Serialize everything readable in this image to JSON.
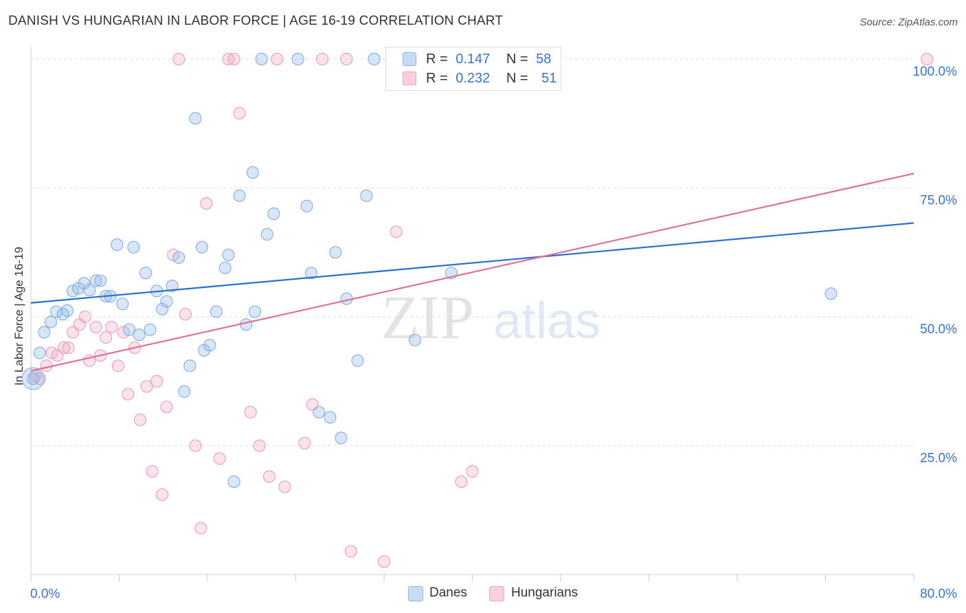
{
  "title": "DANISH VS HUNGARIAN IN LABOR FORCE | AGE 16-19 CORRELATION CHART",
  "source": "Source: ZipAtlas.com",
  "watermark": {
    "zip": "ZIP",
    "atlas": "atlas"
  },
  "legend": {
    "r_label": "R =",
    "n_label": "N =",
    "danes": {
      "r": "0.147",
      "n": "58"
    },
    "hungarians": {
      "r": "0.232",
      "n": "51"
    }
  },
  "chart_data": {
    "type": "scatter",
    "title": "DANISH VS HUNGARIAN IN LABOR FORCE | AGE 16-19 CORRELATION CHART",
    "xlabel": "",
    "ylabel": "In Labor Force | Age 16-19",
    "xlim": [
      0,
      80
    ],
    "ylim": [
      0,
      102
    ],
    "x_tick_labels": [
      "0.0%",
      "80.0%"
    ],
    "y_tick_values": [
      25,
      50,
      75,
      100
    ],
    "y_tick_labels": [
      "25.0%",
      "50.0%",
      "75.0%",
      "100.0%"
    ],
    "grid": true,
    "legend_position": "top-center",
    "colors": {
      "danes": "#8fb8e8",
      "danes_line": "#2a6fd0",
      "hungarians": "#f2a3bd",
      "hungarians_line": "#e0709a",
      "tick_text": "#3a73c8"
    },
    "series": [
      {
        "name": "Danes",
        "r": 0.147,
        "n": 58,
        "trend": [
          [
            0,
            52.7
          ],
          [
            80,
            68.2
          ]
        ],
        "points": [
          [
            0.2,
            38
          ],
          [
            0.8,
            43
          ],
          [
            1.2,
            47
          ],
          [
            1.8,
            49
          ],
          [
            2.3,
            51
          ],
          [
            2.9,
            50.5
          ],
          [
            3.3,
            51.2
          ],
          [
            3.8,
            55
          ],
          [
            4.3,
            55.5
          ],
          [
            4.8,
            56.5
          ],
          [
            5.3,
            55.2
          ],
          [
            5.9,
            57
          ],
          [
            6.3,
            57
          ],
          [
            6.8,
            54
          ],
          [
            7.2,
            54
          ],
          [
            7.8,
            64
          ],
          [
            8.3,
            52.5
          ],
          [
            8.9,
            47.5
          ],
          [
            9.3,
            63.5
          ],
          [
            9.8,
            46.5
          ],
          [
            10.4,
            58.5
          ],
          [
            10.8,
            47.5
          ],
          [
            11.4,
            55
          ],
          [
            11.9,
            51.5
          ],
          [
            12.3,
            53
          ],
          [
            12.8,
            56
          ],
          [
            13.4,
            61.5
          ],
          [
            13.9,
            35.5
          ],
          [
            14.4,
            40.5
          ],
          [
            14.9,
            88.5
          ],
          [
            15.5,
            63.5
          ],
          [
            15.7,
            43.5
          ],
          [
            16.2,
            44.5
          ],
          [
            16.8,
            51
          ],
          [
            17.6,
            59.5
          ],
          [
            17.9,
            62
          ],
          [
            18.4,
            18
          ],
          [
            18.9,
            73.5
          ],
          [
            19.5,
            48.5
          ],
          [
            20.1,
            78
          ],
          [
            20.3,
            51
          ],
          [
            20.9,
            100
          ],
          [
            21.4,
            66
          ],
          [
            22.0,
            70
          ],
          [
            24.2,
            100
          ],
          [
            25.0,
            71.5
          ],
          [
            25.4,
            58.5
          ],
          [
            26.1,
            31.5
          ],
          [
            27.1,
            30.5
          ],
          [
            27.6,
            62.5
          ],
          [
            28.1,
            26.5
          ],
          [
            28.6,
            53.5
          ],
          [
            29.6,
            41.5
          ],
          [
            30.4,
            73.5
          ],
          [
            31.1,
            100
          ],
          [
            34.8,
            45.5
          ],
          [
            38.1,
            58.5
          ],
          [
            72.5,
            54.5
          ]
        ]
      },
      {
        "name": "Hungarians",
        "r": 0.232,
        "n": 51,
        "trend": [
          [
            0,
            39.5
          ],
          [
            80,
            77.8
          ]
        ],
        "points": [
          [
            0.4,
            38.5
          ],
          [
            0.8,
            38
          ],
          [
            1.4,
            40.5
          ],
          [
            1.9,
            43
          ],
          [
            2.4,
            42.5
          ],
          [
            3.0,
            44
          ],
          [
            3.4,
            44
          ],
          [
            3.8,
            47
          ],
          [
            4.4,
            48.5
          ],
          [
            4.9,
            50
          ],
          [
            5.3,
            41.5
          ],
          [
            5.9,
            48
          ],
          [
            6.3,
            42.5
          ],
          [
            6.8,
            46
          ],
          [
            7.3,
            48
          ],
          [
            7.9,
            40.5
          ],
          [
            8.4,
            47
          ],
          [
            8.8,
            35
          ],
          [
            9.4,
            44
          ],
          [
            9.9,
            30
          ],
          [
            10.5,
            36.5
          ],
          [
            11.0,
            20
          ],
          [
            11.4,
            37.5
          ],
          [
            11.9,
            15.5
          ],
          [
            12.3,
            32.5
          ],
          [
            12.9,
            62
          ],
          [
            13.4,
            100
          ],
          [
            14.0,
            50.5
          ],
          [
            14.9,
            25
          ],
          [
            15.4,
            9
          ],
          [
            15.9,
            72
          ],
          [
            17.1,
            22.5
          ],
          [
            17.9,
            100
          ],
          [
            18.4,
            100
          ],
          [
            18.9,
            89.5
          ],
          [
            19.9,
            31.5
          ],
          [
            20.7,
            25
          ],
          [
            21.6,
            19
          ],
          [
            22.3,
            100
          ],
          [
            23.0,
            17
          ],
          [
            24.8,
            25.5
          ],
          [
            25.5,
            33
          ],
          [
            26.4,
            100
          ],
          [
            28.6,
            100
          ],
          [
            29.0,
            4.5
          ],
          [
            32.0,
            2.5
          ],
          [
            33.1,
            66.5
          ],
          [
            39.0,
            18
          ],
          [
            40.0,
            20
          ],
          [
            41.2,
            100
          ],
          [
            81.2,
            100
          ]
        ]
      }
    ]
  }
}
